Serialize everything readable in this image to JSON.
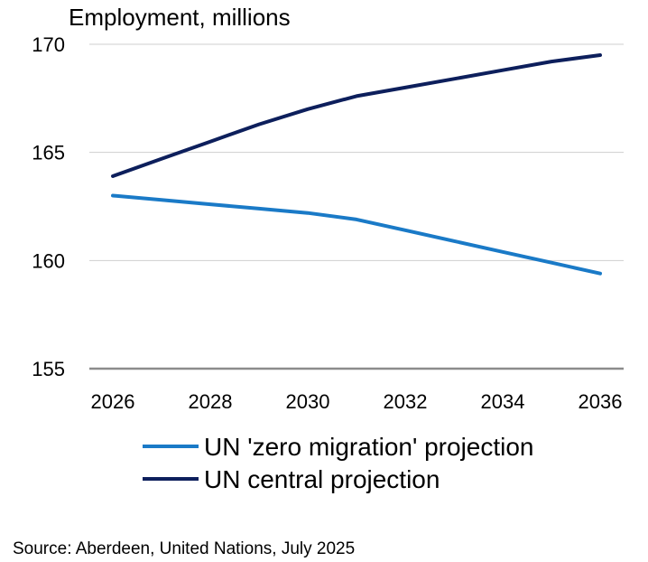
{
  "chart_data": {
    "type": "line",
    "title": "",
    "ylabel": "Employment, millions",
    "xlabel": "",
    "x": [
      2026,
      2027,
      2028,
      2029,
      2030,
      2031,
      2032,
      2033,
      2034,
      2035,
      2036
    ],
    "x_ticks": [
      "2026",
      "2028",
      "2030",
      "2032",
      "2034",
      "2036"
    ],
    "y_ticks": [
      "155",
      "160",
      "165",
      "170"
    ],
    "ylim": [
      155,
      170
    ],
    "xlim": [
      2026,
      2036
    ],
    "grid": "horizontal",
    "legend_position": "bottom",
    "series": [
      {
        "name": "UN 'zero migration' projection",
        "color": "#1a7ac7",
        "values": [
          163.0,
          162.8,
          162.6,
          162.4,
          162.2,
          161.9,
          161.4,
          160.9,
          160.4,
          159.9,
          159.4
        ]
      },
      {
        "name": "UN central projection",
        "color": "#0d1f5c",
        "values": [
          163.9,
          164.7,
          165.5,
          166.3,
          167.0,
          167.6,
          168.0,
          168.4,
          168.8,
          169.2,
          169.5
        ]
      }
    ]
  },
  "footer": {
    "source": "Source: Aberdeen, United Nations, July 2025"
  }
}
